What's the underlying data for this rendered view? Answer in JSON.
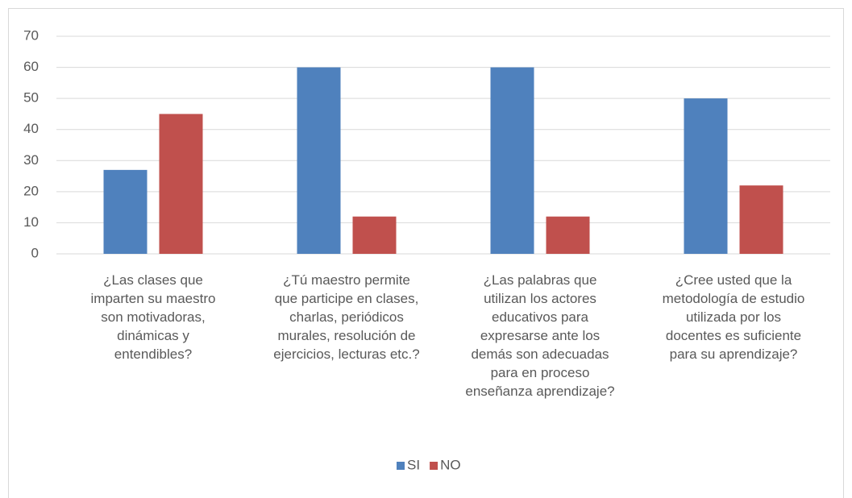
{
  "chart_data": {
    "type": "bar",
    "categories": [
      "¿Las clases que\nimparten su maestro\nson motivadoras,\ndinámicas y\nentendibles?",
      "¿Tú maestro permite\nque participe en clases,\ncharlas, periódicos\nmurales, resolución de\nejercicios, lecturas etc.?",
      "¿Las palabras que\nutilizan los actores\neducativos para\nexpresarse ante los\ndemás son adecuadas\npara en  proceso\nenseñanza aprendizaje?",
      "¿Cree usted que la\nmetodología de estudio\nutilizada por los\ndocentes es suficiente\npara su aprendizaje?"
    ],
    "series": [
      {
        "name": "SI",
        "color": "#4f81bd",
        "values": [
          27,
          60,
          60,
          50
        ]
      },
      {
        "name": "NO",
        "color": "#c0504d",
        "values": [
          45,
          12,
          12,
          22
        ]
      }
    ],
    "ylim": [
      0,
      70
    ],
    "yticks": [
      0,
      10,
      20,
      30,
      40,
      50,
      60,
      70
    ],
    "grid": true,
    "legend": "bottom"
  }
}
